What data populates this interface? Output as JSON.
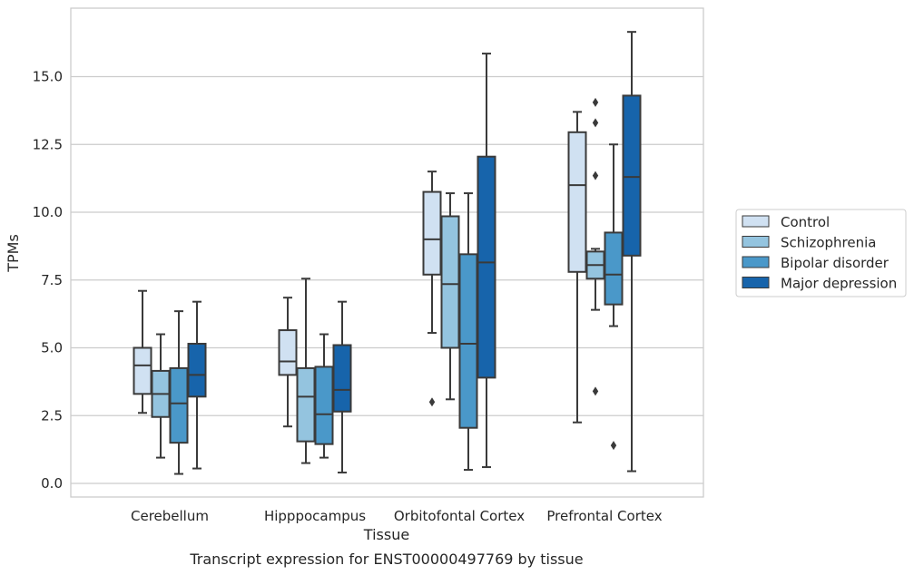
{
  "chart_data": {
    "type": "box",
    "title": "Transcript expression for ENST00000497769 by tissue",
    "xlabel": "Tissue",
    "ylabel": "TPMs",
    "ylim": [
      -0.45,
      17.5
    ],
    "yticks": [
      "0.0",
      "2.5",
      "5.0",
      "7.5",
      "10.0",
      "12.5",
      "15.0"
    ],
    "ytick_values": [
      0,
      2.5,
      5,
      7.5,
      10,
      12.5,
      15
    ],
    "grid": true,
    "legend_position": "right",
    "categories": [
      "Cerebellum",
      "Hipppocampus",
      "Orbitofontal Cortex",
      "Prefrontal Cortex"
    ],
    "series": [
      {
        "name": "Control",
        "color": "#d0e1f2",
        "boxes": [
          {
            "whislo": 2.6,
            "q1": 3.3,
            "med": 4.35,
            "q3": 5.0,
            "whishi": 7.1,
            "fliers": []
          },
          {
            "whislo": 2.1,
            "q1": 4.0,
            "med": 4.5,
            "q3": 5.65,
            "whishi": 6.85,
            "fliers": []
          },
          {
            "whislo": 5.55,
            "q1": 7.7,
            "med": 9.0,
            "q3": 10.75,
            "whishi": 11.5,
            "fliers": [
              3.0
            ]
          },
          {
            "whislo": 2.25,
            "q1": 7.8,
            "med": 11.0,
            "q3": 12.95,
            "whishi": 13.7,
            "fliers": []
          }
        ]
      },
      {
        "name": "Schizophrenia",
        "color": "#94c4df",
        "boxes": [
          {
            "whislo": 0.95,
            "q1": 2.45,
            "med": 3.3,
            "q3": 4.15,
            "whishi": 5.5,
            "fliers": []
          },
          {
            "whislo": 0.75,
            "q1": 1.55,
            "med": 3.2,
            "q3": 4.25,
            "whishi": 7.55,
            "fliers": []
          },
          {
            "whislo": 3.1,
            "q1": 5.0,
            "med": 7.35,
            "q3": 9.85,
            "whishi": 10.7,
            "fliers": []
          },
          {
            "whislo": 6.4,
            "q1": 7.55,
            "med": 8.05,
            "q3": 8.55,
            "whishi": 8.65,
            "fliers": [
              14.05,
              13.3,
              11.35,
              3.4
            ]
          }
        ]
      },
      {
        "name": "Bipolar disorder",
        "color": "#4a98c9",
        "boxes": [
          {
            "whislo": 0.35,
            "q1": 1.5,
            "med": 2.95,
            "q3": 4.25,
            "whishi": 6.35,
            "fliers": []
          },
          {
            "whislo": 0.95,
            "q1": 1.45,
            "med": 2.55,
            "q3": 4.3,
            "whishi": 5.5,
            "fliers": []
          },
          {
            "whislo": 0.5,
            "q1": 2.05,
            "med": 5.15,
            "q3": 8.45,
            "whishi": 10.7,
            "fliers": []
          },
          {
            "whislo": 5.8,
            "q1": 6.6,
            "med": 7.7,
            "q3": 9.25,
            "whishi": 12.5,
            "fliers": [
              1.4
            ]
          }
        ]
      },
      {
        "name": "Major depression",
        "color": "#1764ab",
        "boxes": [
          {
            "whislo": 0.55,
            "q1": 3.2,
            "med": 4.0,
            "q3": 5.15,
            "whishi": 6.7,
            "fliers": []
          },
          {
            "whislo": 0.4,
            "q1": 2.65,
            "med": 3.45,
            "q3": 5.1,
            "whishi": 6.7,
            "fliers": []
          },
          {
            "whislo": 0.6,
            "q1": 3.9,
            "med": 8.15,
            "q3": 12.05,
            "whishi": 15.85,
            "fliers": []
          },
          {
            "whislo": 0.45,
            "q1": 8.4,
            "med": 11.3,
            "q3": 14.3,
            "whishi": 16.65,
            "fliers": []
          }
        ]
      }
    ]
  }
}
